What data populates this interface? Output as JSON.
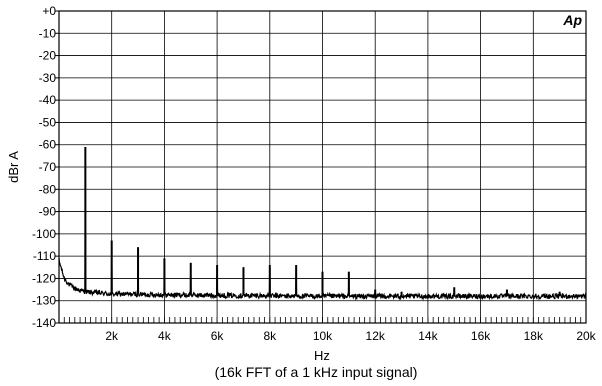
{
  "chart_data": {
    "type": "line",
    "logo": "Ap",
    "ylabel": "dBr A",
    "xlabel": "Hz",
    "caption": "(16k FFT of a 1 kHz input signal)",
    "x_unit": "Hz",
    "xlim": [
      0,
      20000
    ],
    "ylim": [
      -140,
      0
    ],
    "grid": true,
    "y_ticks": [
      {
        "value": 0,
        "label": "+0"
      },
      {
        "value": -10,
        "label": "-10"
      },
      {
        "value": -20,
        "label": "-20"
      },
      {
        "value": -30,
        "label": "-30"
      },
      {
        "value": -40,
        "label": "-40"
      },
      {
        "value": -50,
        "label": "-50"
      },
      {
        "value": -60,
        "label": "-60"
      },
      {
        "value": -70,
        "label": "-70"
      },
      {
        "value": -80,
        "label": "-80"
      },
      {
        "value": -90,
        "label": "-90"
      },
      {
        "value": -100,
        "label": "-100"
      },
      {
        "value": -110,
        "label": "-110"
      },
      {
        "value": -120,
        "label": "-120"
      },
      {
        "value": -130,
        "label": "-130"
      },
      {
        "value": -140,
        "label": "-140"
      }
    ],
    "x_ticks": [
      {
        "value": 2000,
        "label": "2k"
      },
      {
        "value": 4000,
        "label": "4k"
      },
      {
        "value": 6000,
        "label": "6k"
      },
      {
        "value": 8000,
        "label": "8k"
      },
      {
        "value": 10000,
        "label": "10k"
      },
      {
        "value": 12000,
        "label": "12k"
      },
      {
        "value": 14000,
        "label": "14k"
      },
      {
        "value": 16000,
        "label": "16k"
      },
      {
        "value": 18000,
        "label": "18k"
      },
      {
        "value": 20000,
        "label": "20k"
      }
    ],
    "series": [
      {
        "color": "#000000",
        "noise_floor": [
          [
            0,
            -112
          ],
          [
            100,
            -116
          ],
          [
            200,
            -120
          ],
          [
            400,
            -123
          ],
          [
            700,
            -125
          ],
          [
            1000,
            -126
          ],
          [
            2000,
            -127
          ],
          [
            5000,
            -127.5
          ],
          [
            10000,
            -128
          ],
          [
            20000,
            -128
          ]
        ],
        "peaks": [
          {
            "x": 1000,
            "y": -61
          },
          {
            "x": 2000,
            "y": -103
          },
          {
            "x": 3000,
            "y": -106
          },
          {
            "x": 4000,
            "y": -111
          },
          {
            "x": 5000,
            "y": -113
          },
          {
            "x": 6000,
            "y": -114
          },
          {
            "x": 7000,
            "y": -115
          },
          {
            "x": 8000,
            "y": -114
          },
          {
            "x": 9000,
            "y": -114
          },
          {
            "x": 10000,
            "y": -117
          },
          {
            "x": 11000,
            "y": -117
          },
          {
            "x": 12000,
            "y": -125
          },
          {
            "x": 13000,
            "y": -126
          },
          {
            "x": 15000,
            "y": -124
          },
          {
            "x": 17000,
            "y": -125
          },
          {
            "x": 19000,
            "y": -126
          }
        ]
      }
    ]
  }
}
